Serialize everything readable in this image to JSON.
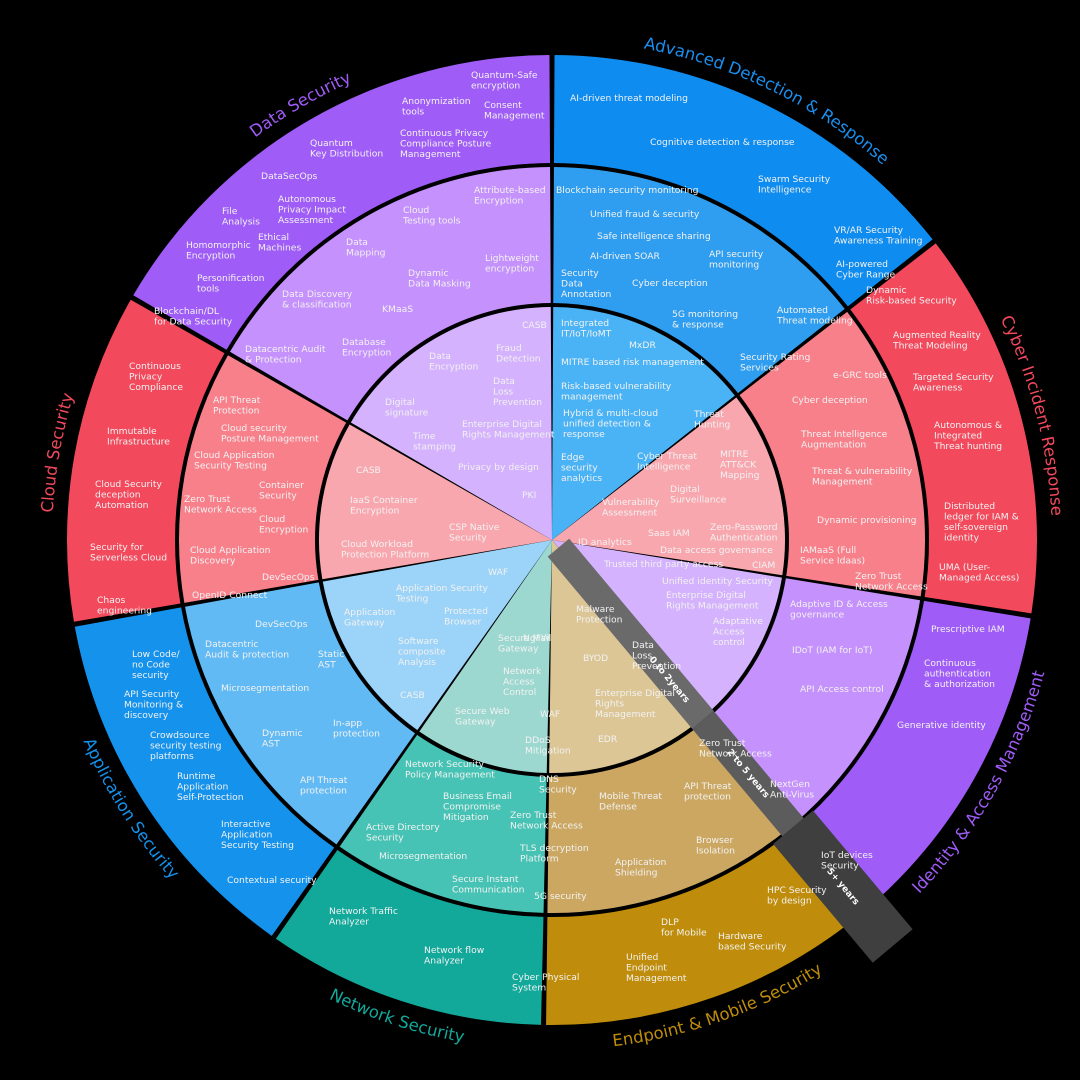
{
  "colors": {
    "background": "#000000",
    "advanced_detection": [
      "#49b3f5",
      "#2f9ef0",
      "#0f8cef"
    ],
    "cyber_incident": [
      "#f9a7ae",
      "#f8808b",
      "#f2495c"
    ],
    "identity": [
      "#d4b2fd",
      "#c591fc",
      "#9f5cf7"
    ],
    "endpoint": [
      "#dcc696",
      "#cba762",
      "#bf8d0b"
    ],
    "network": [
      "#9cd8d0",
      "#46c3b4",
      "#12a99b"
    ],
    "application": [
      "#9cd3f8",
      "#61baf4",
      "#1492ec"
    ],
    "cloud": [
      "#f9a7ae",
      "#f8808b",
      "#f2495c"
    ],
    "data": [
      "#d4b2fd",
      "#c591fc",
      "#9f5cf7"
    ],
    "horizon_bar": "#5a5a5a"
  },
  "horizons": [
    "0 to 2years",
    "2 to 5 years",
    "5+ years"
  ],
  "segments": [
    {
      "name": "Advanced Detection & Response",
      "title_color": "#1a8fef",
      "items": [
        "Integrated|IT/IoT/IoMT",
        "MxDR",
        "MITRE based risk management",
        "Risk-based vulnerability|management",
        "Hybrid & multi-cloud|unified detection &|response",
        "Edge|security|analytics",
        "Blockchain security monitoring",
        "Unified fraud & security",
        "Safe intelligence sharing",
        "AI-driven SOAR",
        "API security|monitoring",
        "Security|Data|Annotation",
        "Cyber deception",
        "5G monitoring|& response",
        "AI-driven threat modeling",
        "Cognitive detection & response",
        "Swarm Security|Intelligence"
      ]
    },
    {
      "name": "Cyber Incident Response",
      "title_color": "#f2495c",
      "items": [
        "Threat|Hunting",
        "Cyber Threat|Intelligence",
        "MITRE|ATT&CK|Mapping",
        "Digital|Surveillance",
        "Vulnerability|Assessment",
        "Automated|Threat modeling",
        "Security Rating|Services",
        "e-GRC tools",
        "Cyber deception",
        "Threat Intelligence|Augmentation",
        "Threat & vulnerability|Management",
        "VR/AR Security|Awareness Training",
        "AI-powered|Cyber Range",
        "Dynamic|Risk-based Security",
        "Augmented Reality|Threat Modeling",
        "Targeted Security|Awareness",
        "Autonomous &|Integrated|Threat hunting"
      ]
    },
    {
      "name": "Identity & Access Management",
      "title_color": "#9f5cf7",
      "items": [
        "ID analytics",
        "Saas IAM",
        "Zero-Password|Authentication",
        "Data access governance",
        "Trusted third party access",
        "CIAM",
        "Unified identity Security",
        "Enterprise Digital|Rights Management",
        "Adaptative|Access|control",
        "Dynamic provisioning",
        "IAMaaS (Full|Service Idaas)",
        "Zero Trust|Network Access",
        "Adaptive ID & Access|governance",
        "IDoT (IAM for IoT)",
        "API Access control",
        "Distributed|ledger for IAM &|self-sovereign|identity",
        "UMA (User-|Managed Access)",
        "Prescriptive IAM",
        "Continuous|authentication|& authorization",
        "Generative identity"
      ]
    },
    {
      "name": "Endpoint & Mobile Security",
      "title_color": "#bf8d0b",
      "items": [
        "Malware|Protection",
        "BYOD",
        "Data|Loss|Prevention",
        "Enterprise Digital|Rights|Management",
        "EDR",
        "Zero Trust|Network Access",
        "Mobile Threat|Defense",
        "API Threat|protection",
        "NextGen|Anti-Virus",
        "Browser|Isolation",
        "Application|Shielding",
        "IoT devices|Security",
        "HPC Security|by design",
        "DLP|for Mobile",
        "Hardware|based Security",
        "Unified|Endpoint|Management"
      ]
    },
    {
      "name": "Network Security",
      "title_color": "#12a99b",
      "items": [
        "NgFW",
        "Secure Mail|Gateway",
        "Network|Access|Control",
        "WAF",
        "Secure Web|Gateway",
        "DDoS|Mitigation",
        "Network Security|Policy Management",
        "DNS|Security",
        "Business Email|Compromise|Mitigation",
        "Zero Trust|Network Access",
        "Active Directory|Security",
        "TLS decryption|Platform",
        "Microsegmentation",
        "Secure Instant|Communication",
        "5G security",
        "Network Traffic|Analyzer",
        "Network flow|Analyzer",
        "Cyber Physical|System"
      ]
    },
    {
      "name": "Application Security",
      "title_color": "#1492ec",
      "items": [
        "WAF",
        "Application Security|Testing",
        "Application|Gateway",
        "Protected|Browser",
        "Software|composite|Analysis",
        "CASB",
        "DevSecOps",
        "Datacentric|Audit & protection",
        "Static|AST",
        "Microsegmentation",
        "Dynamic|AST",
        "In-app|protection",
        "API Threat|protection",
        "Low Code/|no Code|security",
        "API Security|Monitoring &|discovery",
        "Crowdsource|security testing|platforms",
        "Runtime|Application|Self-Protection",
        "Interactive|Application|Security Testing",
        "Contextual security"
      ]
    },
    {
      "name": "Cloud Security",
      "title_color": "#f2495c",
      "items": [
        "CASB",
        "IaaS Container|Encryption",
        "CSP Native|Security",
        "Cloud Workload|Protection Platform",
        "API Threat|Protection",
        "Cloud security|Posture Management",
        "Cloud Application|Security Testing",
        "Container|Security",
        "Zero Trust|Network Access",
        "Cloud|Encryption",
        "Cloud Application|Discovery",
        "DevSecOps",
        "OpenID Connect",
        "Continuous|Privacy|Compliance",
        "Immutable|Infrastructure",
        "Cloud Security|deception|Automation",
        "Security for|Serverless Cloud",
        "Chaos|engineering"
      ]
    },
    {
      "name": "Data Security",
      "title_color": "#9f5cf7",
      "items": [
        "CASB",
        "Fraud|Detection",
        "Data|Encryption",
        "Data|Loss|Prevention",
        "Digital|signature",
        "Enterprise Digital|Rights Management",
        "Time|stamping",
        "Privacy by design",
        "PKI",
        "Attribute-based|Encryption",
        "Cloud|Testing tools",
        "Data|Mapping",
        "Lightweight|encryption",
        "Dynamic|Data Masking",
        "Data Discovery|& classification",
        "KMaaS",
        "Database|Encryption",
        "Datacentric Audit|& Protection",
        "Quantum-Safe|encryption",
        "Anonymization|tools",
        "Consent|Management",
        "Continuous Privacy|Compliance Posture|Management",
        "Quantum|Key Distribution",
        "DataSecOps",
        "Autonomous|Privacy Impact|Assessment",
        "File|Analysis",
        "Ethical|Machines",
        "Homomorphic|Encryption",
        "Personification|tools",
        "Blockchain/DL|for Data Security"
      ]
    }
  ]
}
